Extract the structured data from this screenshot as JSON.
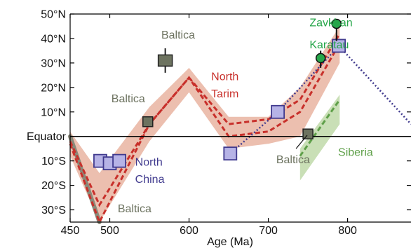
{
  "chart_data": {
    "type": "line",
    "title": "",
    "xlabel": "Age (Ma)",
    "ylabel": "",
    "xlim": [
      450,
      880
    ],
    "ylim": [
      -35,
      50
    ],
    "x_ticks": [
      450,
      500,
      600,
      700,
      800
    ],
    "x_tick_labels": [
      "450",
      "500",
      "600",
      "700",
      "800"
    ],
    "y_ticks": [
      50,
      40,
      30,
      20,
      10,
      0,
      -10,
      -20,
      -30
    ],
    "y_tick_labels": [
      "50°N",
      "40°N",
      "30°N",
      "20°N",
      "10°N",
      "Equator",
      "10°S",
      "20°S",
      "30°S"
    ],
    "grid": false,
    "legend": "none",
    "colors": {
      "tarim_band": "#eab8a6",
      "tarim_line": "#c8302b",
      "baltica": "#6d7360",
      "baltica_band": "#8a8a7a",
      "north_china": "#403a8e",
      "north_china_fill": "#b6b3e6",
      "siberia_band": "#c3dcae",
      "siberia_line": "#5fa04a",
      "zavkhan": "#26a64a",
      "equator_line": "#000000"
    },
    "series": [
      {
        "name": "North Tarim",
        "x": [
          450,
          487,
          550,
          600,
          650,
          700,
          740,
          790
        ],
        "y": [
          -2,
          -28,
          5,
          24,
          0,
          2,
          10,
          38
        ],
        "upper": [
          2,
          -15,
          12,
          28,
          8,
          8,
          20,
          45
        ],
        "lower": [
          -8,
          -35,
          -2,
          18,
          -5,
          -3,
          0,
          30
        ],
        "extra_path": {
          "x": [
            450,
            487,
            550,
            600,
            650,
            700,
            740,
            790
          ],
          "y": [
            -3,
            -35,
            5,
            24,
            5,
            7,
            15,
            42
          ]
        }
      },
      {
        "name": "North China",
        "x": [
          488,
          500,
          512,
          652,
          712,
          789
        ],
        "y": [
          -10,
          -11,
          -10,
          -7,
          10,
          37
        ],
        "trend": {
          "x": [
            652,
            712,
            789,
            880
          ],
          "y": [
            -7,
            10,
            37,
            5
          ]
        }
      },
      {
        "name": "Baltica",
        "points": [
          {
            "x": 548,
            "y": 6,
            "label": "Baltica"
          },
          {
            "x": 570,
            "y": 31,
            "err": [
              26,
              36
            ],
            "label": "Baltica"
          },
          {
            "x": 750,
            "y": 1,
            "label": "Baltica"
          }
        ],
        "band": {
          "x": [
            450,
            487
          ],
          "y": [
            0,
            -35
          ]
        }
      },
      {
        "name": "Siberia",
        "x": [
          740,
          790
        ],
        "y": [
          -8,
          15
        ],
        "band_upper": [
          -5,
          17
        ],
        "band_lower": [
          -18,
          5
        ]
      },
      {
        "name": "Zavkhan Karatau",
        "points": [
          {
            "x": 766,
            "y": 32,
            "err": [
              28,
              35
            ]
          },
          {
            "x": 786,
            "y": 46,
            "err": [
              39,
              48
            ]
          }
        ]
      }
    ],
    "annotations": [
      {
        "text": "Baltica",
        "x": 565,
        "y": 40,
        "color_key": "baltica"
      },
      {
        "text": "Baltica",
        "x": 502,
        "y": 14,
        "color_key": "baltica"
      },
      {
        "text": "Baltica",
        "x": 510,
        "y": -31,
        "color_key": "baltica"
      },
      {
        "text": "Baltica",
        "x": 710,
        "y": -11,
        "color_key": "baltica"
      },
      {
        "text": "North",
        "x": 628,
        "y": 23,
        "color_key": "tarim_line"
      },
      {
        "text": "Tarim",
        "x": 628,
        "y": 16,
        "color_key": "tarim_line"
      },
      {
        "text": "Zavkhan",
        "x": 752,
        "y": 45,
        "color_key": "zavkhan"
      },
      {
        "text": "Karatau",
        "x": 752,
        "y": 36,
        "color_key": "zavkhan"
      },
      {
        "text": "North",
        "x": 532,
        "y": -12,
        "color_key": "north_china"
      },
      {
        "text": "China",
        "x": 532,
        "y": -19,
        "color_key": "north_china"
      },
      {
        "text": "Siberia",
        "x": 788,
        "y": -8,
        "color_key": "siberia_line"
      }
    ]
  }
}
